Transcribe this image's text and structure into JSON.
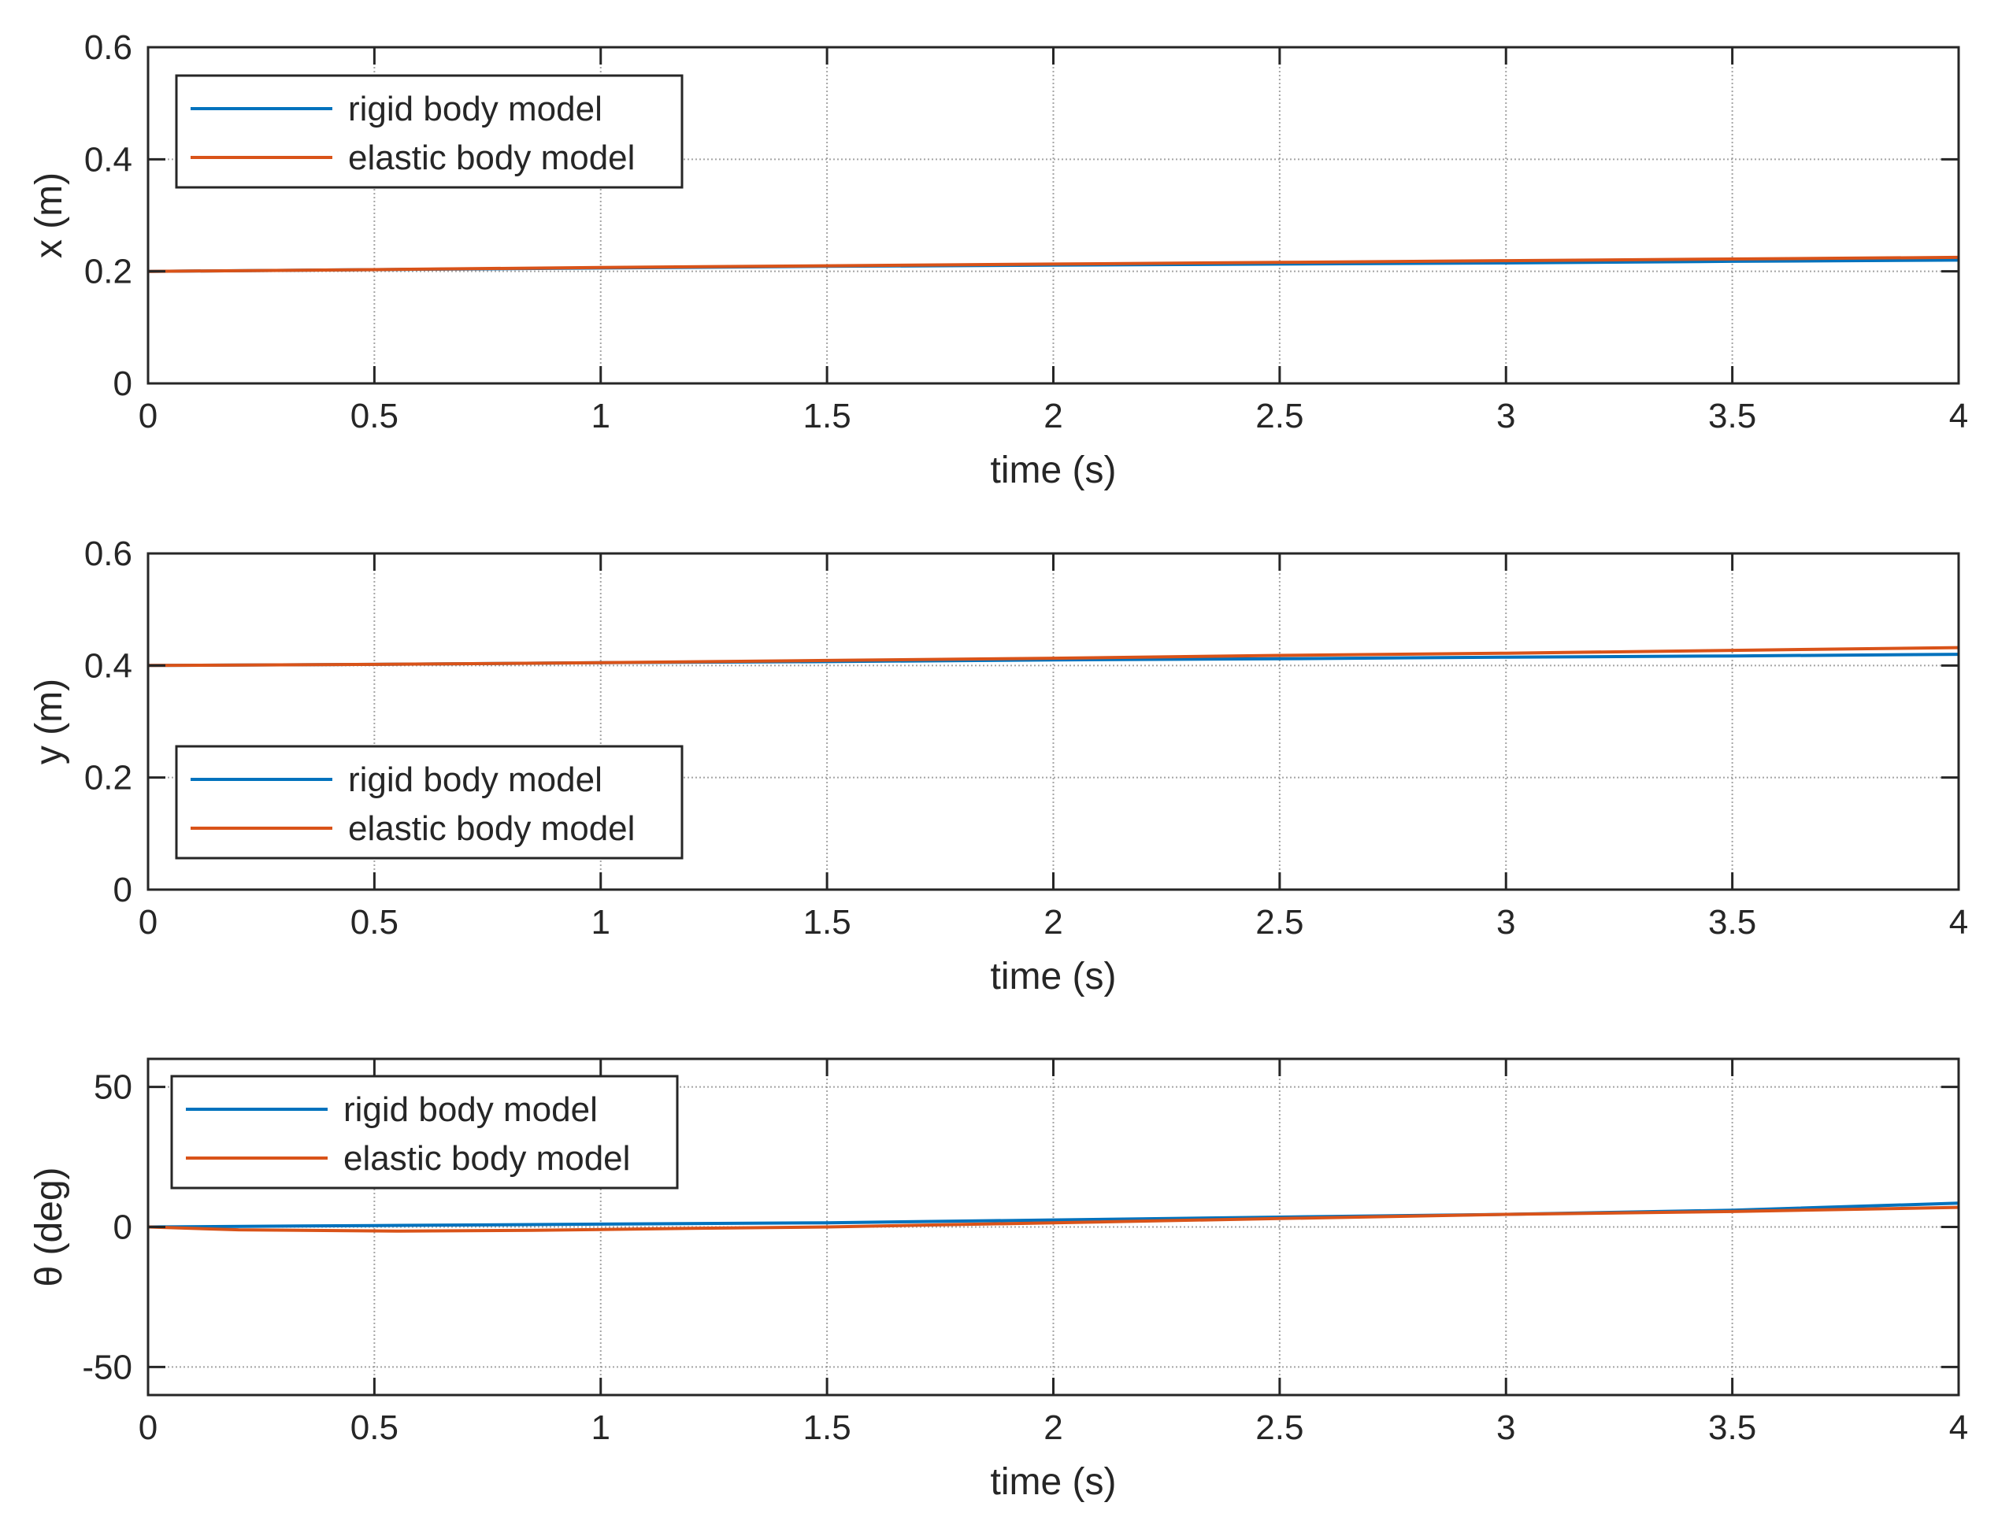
{
  "figure": {
    "colors": {
      "rigid": "#0072BD",
      "elastic": "#D95319",
      "axes": "#262626",
      "grid": "#7f7f7f",
      "background": "#ffffff"
    }
  },
  "chart_data": [
    {
      "type": "line",
      "title": "",
      "xlabel": "time (s)",
      "ylabel": "x (m)",
      "xlim": [
        0,
        4
      ],
      "ylim": [
        0,
        0.6
      ],
      "xticks": [
        0,
        0.5,
        1,
        1.5,
        2,
        2.5,
        3,
        3.5,
        4
      ],
      "xtick_labels": [
        "0",
        "0.5",
        "1",
        "1.5",
        "2",
        "2.5",
        "3",
        "3.5",
        "4"
      ],
      "yticks": [
        0,
        0.2,
        0.4,
        0.6
      ],
      "ytick_labels": [
        "0",
        "0.2",
        "0.4",
        "0.6"
      ],
      "grid": true,
      "legend": {
        "position": "top-left",
        "entries": [
          "rigid body model",
          "elastic body model"
        ]
      },
      "series": [
        {
          "name": "rigid body model",
          "color": "#0072BD",
          "x": [
            0,
            0.5,
            1,
            1.5,
            2,
            2.5,
            3,
            3.5,
            4
          ],
          "y": [
            0.2,
            0.203,
            0.206,
            0.209,
            0.211,
            0.213,
            0.215,
            0.218,
            0.22
          ]
        },
        {
          "name": "elastic body model",
          "color": "#D95319",
          "x": [
            0,
            0.5,
            1,
            1.5,
            2,
            2.5,
            3,
            3.5,
            4
          ],
          "y": [
            0.2,
            0.203,
            0.207,
            0.21,
            0.213,
            0.216,
            0.219,
            0.222,
            0.225
          ]
        }
      ]
    },
    {
      "type": "line",
      "title": "",
      "xlabel": "time (s)",
      "ylabel": "y (m)",
      "xlim": [
        0,
        4
      ],
      "ylim": [
        0,
        0.6
      ],
      "xticks": [
        0,
        0.5,
        1,
        1.5,
        2,
        2.5,
        3,
        3.5,
        4
      ],
      "xtick_labels": [
        "0",
        "0.5",
        "1",
        "1.5",
        "2",
        "2.5",
        "3",
        "3.5",
        "4"
      ],
      "yticks": [
        0,
        0.2,
        0.4,
        0.6
      ],
      "ytick_labels": [
        "0",
        "0.2",
        "0.4",
        "0.6"
      ],
      "grid": true,
      "legend": {
        "position": "bottom-left",
        "entries": [
          "rigid body model",
          "elastic body model"
        ]
      },
      "series": [
        {
          "name": "rigid body model",
          "color": "#0072BD",
          "x": [
            0,
            0.5,
            1,
            1.5,
            2,
            2.5,
            3,
            3.5,
            4
          ],
          "y": [
            0.4,
            0.402,
            0.405,
            0.407,
            0.41,
            0.412,
            0.415,
            0.417,
            0.42
          ]
        },
        {
          "name": "elastic body model",
          "color": "#D95319",
          "x": [
            0,
            0.5,
            1,
            1.5,
            2,
            2.5,
            3,
            3.5,
            4
          ],
          "y": [
            0.4,
            0.402,
            0.405,
            0.409,
            0.413,
            0.418,
            0.422,
            0.427,
            0.432
          ]
        }
      ]
    },
    {
      "type": "line",
      "title": "",
      "xlabel": "time (s)",
      "ylabel": "θ (deg)",
      "xlim": [
        0,
        4
      ],
      "ylim": [
        -60,
        60
      ],
      "xticks": [
        0,
        0.5,
        1,
        1.5,
        2,
        2.5,
        3,
        3.5,
        4
      ],
      "xtick_labels": [
        "0",
        "0.5",
        "1",
        "1.5",
        "2",
        "2.5",
        "3",
        "3.5",
        "4"
      ],
      "yticks": [
        -50,
        0,
        50
      ],
      "ytick_labels": [
        "-50",
        "0",
        "50"
      ],
      "grid": true,
      "legend": {
        "position": "top-left",
        "entries": [
          "rigid body model",
          "elastic body model"
        ]
      },
      "series": [
        {
          "name": "rigid body model",
          "color": "#0072BD",
          "x": [
            0,
            0.5,
            1,
            1.5,
            2,
            2.5,
            3,
            3.5,
            4
          ],
          "y": [
            0,
            0.5,
            1,
            1.5,
            2.5,
            3.5,
            4.5,
            6,
            8.5
          ]
        },
        {
          "name": "elastic body model",
          "color": "#D95319",
          "x": [
            0,
            0.2,
            0.55,
            0.85,
            1.2,
            1.5,
            2,
            2.5,
            3,
            3.5,
            4
          ],
          "y": [
            0,
            -1,
            -1.5,
            -1.2,
            -0.5,
            0,
            1.5,
            3,
            4.5,
            5.5,
            7
          ]
        }
      ]
    }
  ]
}
